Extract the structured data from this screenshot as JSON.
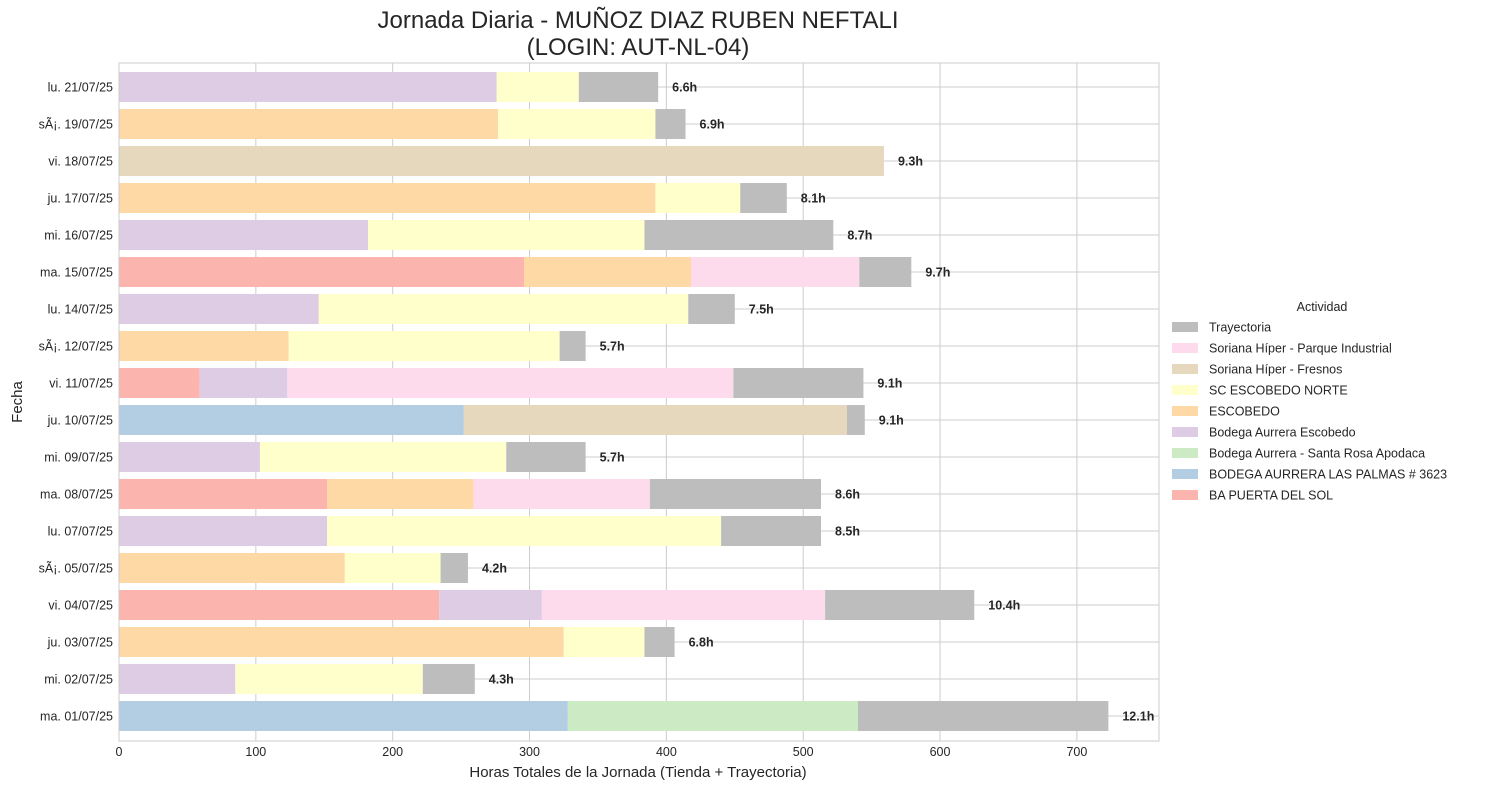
{
  "chart_data": {
    "type": "bar",
    "orientation": "horizontal",
    "stacked": true,
    "title": "Jornada Diaria - MUÑOZ DIAZ RUBEN NEFTALI",
    "subtitle": "(LOGIN: AUT-NL-04)",
    "xlabel": "Horas Totales de la Jornada (Tienda + Trayectoria)",
    "ylabel": "Fecha",
    "xlim": [
      0,
      760
    ],
    "xticks": [
      0,
      100,
      200,
      300,
      400,
      500,
      600,
      700
    ],
    "grid": true,
    "legend_title": "Actividad",
    "legend_position": "right",
    "categories": [
      "lu. 21/07/25",
      "sÃ¡. 19/07/25",
      "vi. 18/07/25",
      "ju. 17/07/25",
      "mi. 16/07/25",
      "ma. 15/07/25",
      "lu. 14/07/25",
      "sÃ¡. 12/07/25",
      "vi. 11/07/25",
      "ju. 10/07/25",
      "mi. 09/07/25",
      "ma. 08/07/25",
      "lu. 07/07/25",
      "sÃ¡. 05/07/25",
      "vi. 04/07/25",
      "ju. 03/07/25",
      "mi. 02/07/25",
      "ma. 01/07/25"
    ],
    "totals": [
      "6.6h",
      "6.9h",
      "9.3h",
      "8.1h",
      "8.7h",
      "9.7h",
      "7.5h",
      "5.7h",
      "9.1h",
      "9.1h",
      "5.7h",
      "8.6h",
      "8.5h",
      "4.2h",
      "10.4h",
      "6.8h",
      "4.3h",
      "12.1h"
    ],
    "series": [
      {
        "name": "BA PUERTA DEL SOL",
        "color": "#fbb4ae",
        "values": [
          0,
          0,
          0,
          0,
          0,
          296,
          0,
          0,
          59,
          0,
          0,
          152,
          0,
          0,
          234,
          0,
          0,
          0
        ]
      },
      {
        "name": "BODEGA AURRERA LAS PALMAS # 3623",
        "color": "#b3cde3",
        "values": [
          0,
          0,
          0,
          0,
          0,
          0,
          0,
          0,
          0,
          252,
          0,
          0,
          0,
          0,
          0,
          0,
          0,
          328
        ]
      },
      {
        "name": "Bodega Aurrera - Santa Rosa Apodaca",
        "color": "#ccebc5",
        "values": [
          0,
          0,
          0,
          0,
          0,
          0,
          0,
          0,
          0,
          0,
          0,
          0,
          0,
          0,
          0,
          0,
          0,
          212
        ]
      },
      {
        "name": "Bodega Aurrera Escobedo",
        "color": "#decbe4",
        "values": [
          276,
          0,
          0,
          0,
          182,
          0,
          146,
          0,
          64,
          0,
          103,
          0,
          152,
          0,
          75,
          0,
          85,
          0
        ]
      },
      {
        "name": "ESCOBEDO",
        "color": "#fed9a6",
        "values": [
          0,
          277,
          0,
          392,
          0,
          122,
          0,
          124,
          0,
          0,
          0,
          107,
          0,
          165,
          0,
          325,
          0,
          0
        ]
      },
      {
        "name": "SC ESCOBEDO NORTE",
        "color": "#ffffcc",
        "values": [
          60,
          115,
          0,
          62,
          202,
          0,
          270,
          198,
          0,
          0,
          180,
          0,
          288,
          70,
          0,
          59,
          137,
          0
        ]
      },
      {
        "name": "Soriana Híper - Fresnos",
        "color": "#e5d8bd",
        "values": [
          0,
          0,
          559,
          0,
          0,
          0,
          0,
          0,
          0,
          280,
          0,
          0,
          0,
          0,
          0,
          0,
          0,
          0
        ]
      },
      {
        "name": "Soriana Híper - Parque Industrial",
        "color": "#fddaec",
        "values": [
          0,
          0,
          0,
          0,
          0,
          123,
          0,
          0,
          326,
          0,
          0,
          129,
          0,
          0,
          207,
          0,
          0,
          0
        ]
      },
      {
        "name": "Trayectoria",
        "color": "#bdbdbd",
        "values": [
          58,
          22,
          0,
          34,
          138,
          38,
          34,
          19,
          95,
          13,
          58,
          125,
          73,
          20,
          109,
          22,
          38,
          183
        ]
      }
    ],
    "legend_order": [
      "Trayectoria",
      "Soriana Híper - Parque Industrial",
      "Soriana Híper - Fresnos",
      "SC ESCOBEDO NORTE",
      "ESCOBEDO",
      "Bodega Aurrera Escobedo",
      "Bodega Aurrera - Santa Rosa Apodaca",
      "BODEGA AURRERA LAS PALMAS # 3623",
      "BA PUERTA DEL SOL"
    ]
  }
}
